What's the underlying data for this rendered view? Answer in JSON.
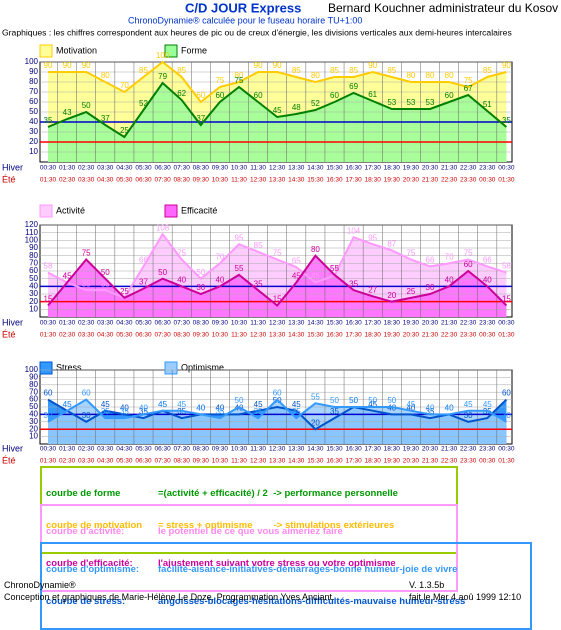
{
  "header": {
    "title": "C/D JOUR Express",
    "subject": "Bernard Kouchner administrateur du Kosov",
    "subtitle": "ChronoDynamie® calculée pour le fuseau horaire TU+1:00",
    "note": "Graphiques : les chiffres correspondent aux heures de pic ou de creux d'énergie, les divisions  verticales  aux demi-heures intercalaires"
  },
  "chart_data": [
    {
      "type": "area",
      "row_labels": [
        "Hiver",
        "Été"
      ],
      "categories": [
        "00:30",
        "01:30",
        "02:30",
        "03:30",
        "04:30",
        "05:30",
        "06:30",
        "07:30",
        "08:30",
        "09:30",
        "10:30",
        "11:30",
        "12:30",
        "13:30",
        "14:30",
        "15:30",
        "16:30",
        "17:30",
        "18:30",
        "19:30",
        "20:30",
        "21:30",
        "22:30",
        "23:30",
        "00:30"
      ],
      "categories2": [
        "01:30",
        "02:30",
        "03:30",
        "04:30",
        "05:30",
        "06:30",
        "07:30",
        "08:30",
        "09:30",
        "10:30",
        "11:30",
        "12:30",
        "13:30",
        "14:30",
        "15:30",
        "16:30",
        "17:30",
        "18:30",
        "19:30",
        "20:30",
        "21:30",
        "22:30",
        "23:30",
        "00:30",
        "01:30"
      ],
      "ylim": [
        0,
        100
      ],
      "yticks": [
        10,
        20,
        30,
        40,
        50,
        60,
        70,
        80,
        90,
        100
      ],
      "hlines": [
        {
          "value": 40,
          "color": "#0000cc"
        },
        {
          "value": 20,
          "color": "#ff0000"
        }
      ],
      "series": [
        {
          "name": "Motivation",
          "color": "#ffff99",
          "line_color": "#ffcc00",
          "values": [
            90,
            90,
            90,
            80,
            70,
            85,
            100,
            85,
            60,
            75,
            80,
            90,
            90,
            85,
            80,
            85,
            85,
            90,
            85,
            80,
            80,
            80,
            75,
            85,
            90
          ]
        },
        {
          "name": "Forme",
          "color": "#99ff99",
          "line_color": "#008000",
          "values": [
            35,
            43,
            50,
            37,
            25,
            52,
            79,
            62,
            37,
            60,
            75,
            60,
            45,
            48,
            52,
            60,
            69,
            61,
            53,
            53,
            53,
            60,
            67,
            51,
            35
          ]
        }
      ]
    },
    {
      "type": "area",
      "row_labels": [
        "Hiver",
        "Été"
      ],
      "categories": [
        "00:30",
        "01:30",
        "02:30",
        "03:30",
        "04:30",
        "05:30",
        "06:30",
        "07:30",
        "08:30",
        "09:30",
        "10:30",
        "11:30",
        "12:30",
        "13:30",
        "14:30",
        "15:30",
        "16:30",
        "17:30",
        "18:30",
        "19:30",
        "20:30",
        "21:30",
        "22:30",
        "23:30",
        "00:30"
      ],
      "categories2": [
        "01:30",
        "02:30",
        "03:30",
        "04:30",
        "05:30",
        "06:30",
        "07:30",
        "08:30",
        "09:30",
        "10:30",
        "11:30",
        "12:30",
        "13:30",
        "14:30",
        "15:30",
        "16:30",
        "17:30",
        "18:30",
        "19:30",
        "20:30",
        "21:30",
        "22:30",
        "23:30",
        "00:30",
        "01:30"
      ],
      "ylim": [
        0,
        120
      ],
      "yticks": [
        10,
        20,
        30,
        40,
        50,
        60,
        70,
        80,
        90,
        100,
        110,
        120
      ],
      "hlines": [
        {
          "value": 40,
          "color": "#0000cc"
        },
        {
          "value": 20,
          "color": "#ff0000"
        }
      ],
      "series": [
        {
          "name": "Activité",
          "color": "#ffccff",
          "line_color": "#ff99ff",
          "values": [
            58,
            45,
            35,
            35,
            25,
            66,
            108,
            75,
            50,
            70,
            95,
            85,
            75,
            65,
            45,
            54,
            104,
            95,
            87,
            75,
            66,
            70,
            75,
            66,
            58
          ]
        },
        {
          "name": "Efficacité",
          "color": "#ff66ff",
          "line_color": "#cc0099",
          "values": [
            15,
            45,
            75,
            50,
            25,
            37,
            50,
            40,
            30,
            40,
            55,
            35,
            15,
            45,
            80,
            55,
            35,
            27,
            20,
            25,
            30,
            40,
            60,
            40,
            15
          ]
        }
      ]
    },
    {
      "type": "area",
      "row_labels": [
        "Hiver",
        "Été"
      ],
      "categories": [
        "00:30",
        "01:30",
        "02:30",
        "03:30",
        "04:30",
        "05:30",
        "06:30",
        "07:30",
        "08:30",
        "09:30",
        "10:30",
        "11:30",
        "12:30",
        "13:30",
        "14:30",
        "15:30",
        "16:30",
        "17:30",
        "18:30",
        "19:30",
        "20:30",
        "21:30",
        "22:30",
        "23:30",
        "00:30"
      ],
      "categories2": [
        "01:30",
        "02:30",
        "03:30",
        "04:30",
        "05:30",
        "06:30",
        "07:30",
        "08:30",
        "09:30",
        "10:30",
        "11:30",
        "12:30",
        "13:30",
        "14:30",
        "15:30",
        "16:30",
        "17:30",
        "18:30",
        "19:30",
        "20:30",
        "21:30",
        "22:30",
        "23:30",
        "00:30",
        "01:30"
      ],
      "ylim": [
        0,
        100
      ],
      "yticks": [
        10,
        20,
        30,
        40,
        50,
        60,
        70,
        80,
        90,
        100
      ],
      "hlines": [
        {
          "value": 40,
          "color": "#0000cc"
        },
        {
          "value": 20,
          "color": "#ff0000"
        }
      ],
      "series": [
        {
          "name": "Stress",
          "color": "#3399ff",
          "line_color": "#0055cc",
          "values": [
            60,
            45,
            30,
            45,
            40,
            35,
            45,
            35,
            40,
            40,
            40,
            45,
            50,
            45,
            20,
            35,
            50,
            45,
            40,
            40,
            35,
            40,
            30,
            35,
            60
          ]
        },
        {
          "name": "Optimisme",
          "color": "#99ccff",
          "line_color": "#3399ff",
          "values": [
            30,
            45,
            60,
            35,
            35,
            40,
            45,
            45,
            40,
            35,
            50,
            35,
            60,
            35,
            55,
            50,
            50,
            50,
            50,
            45,
            40,
            40,
            45,
            45,
            30
          ]
        }
      ]
    }
  ],
  "notes": [
    {
      "lines": [
        {
          "term": "courbe de forme",
          "text": "=(activité + efficacité) / 2  -> performance personnelle"
        },
        {
          "term": "courbe de motivation",
          "text": "= stress + optimisme        -> stimulations extérieures"
        }
      ]
    },
    {
      "lines": [
        {
          "term": "courbe d'activité:",
          "text": "le potentiel de ce que vous aimeriez faire"
        },
        {
          "term": "courbe d'efficacité:",
          "text": "l'ajustement suivant votre stress ou votre optimisme"
        }
      ]
    },
    {
      "lines": [
        {
          "term": "courbe d'optimisme:",
          "text": "facilité-aisance-initiatives-démarrages-bonne humeur-joie de vivre"
        },
        {
          "term": "courbe de stress:",
          "text": "angoisses-blocages-hésitations-difficultés-mauvaise humeur-stress"
        }
      ]
    }
  ],
  "footer": {
    "brand": "ChronoDynamie®",
    "credits": "Conception et graphiques de Marie-Hélène Le Doze. Programmation Yves Anciant.",
    "version": "V. 1.3.5b",
    "date": "fait le Mer 4 aoû 1999 12:10"
  }
}
